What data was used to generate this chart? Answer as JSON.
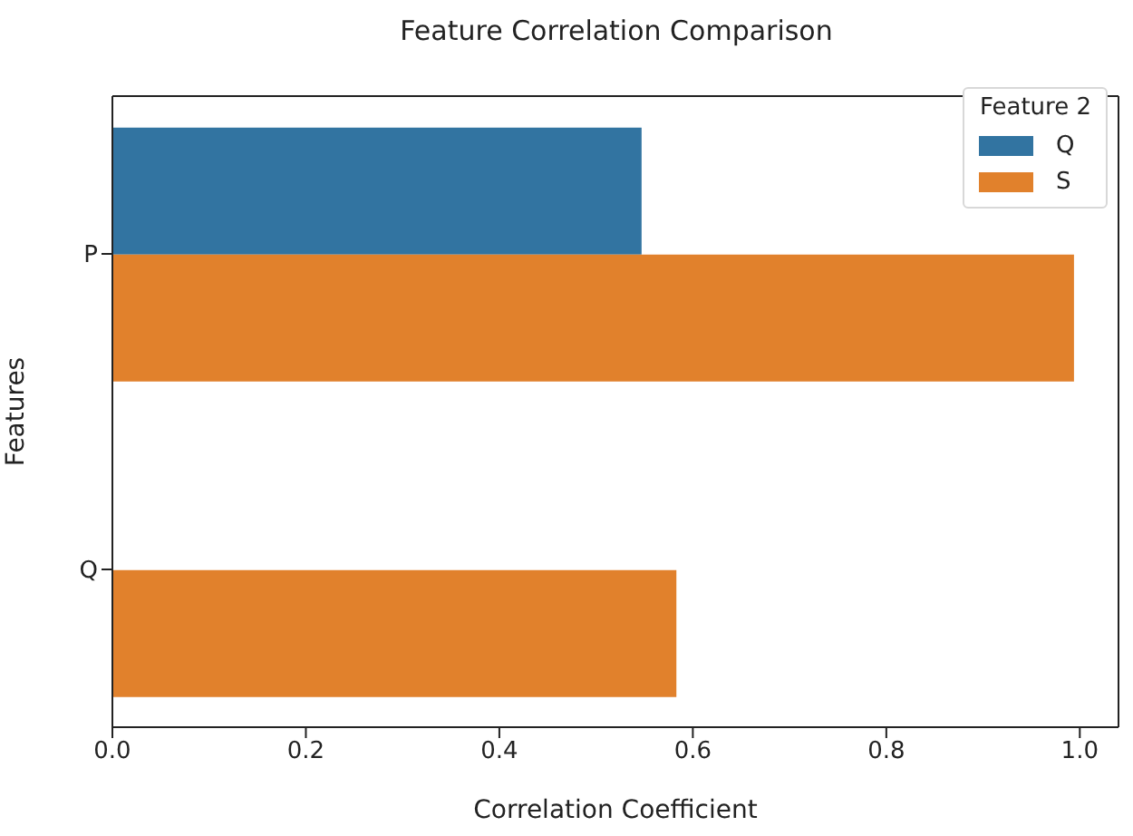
{
  "chart_data": {
    "type": "bar",
    "orientation": "horizontal",
    "title": "Feature Correlation Comparison",
    "xlabel": "Correlation Coefficient",
    "ylabel": "Features",
    "legend_title": "Feature 2",
    "categories": [
      "P",
      "Q"
    ],
    "series": [
      {
        "name": "Q",
        "color": "#3274a1",
        "values": [
          0.547,
          null
        ]
      },
      {
        "name": "S",
        "color": "#e1812c",
        "values": [
          0.994,
          0.583
        ]
      }
    ],
    "xlim": [
      0,
      1.04
    ],
    "xticks": [
      {
        "value": 0,
        "label": "0.0"
      },
      {
        "value": 0.2,
        "label": "0.2"
      },
      {
        "value": 0.4,
        "label": "0.4"
      },
      {
        "value": 0.6,
        "label": "0.6"
      },
      {
        "value": 0.8,
        "label": "0.8"
      },
      {
        "value": 1,
        "label": "1.0"
      }
    ],
    "grid": false,
    "legend": "top right"
  }
}
